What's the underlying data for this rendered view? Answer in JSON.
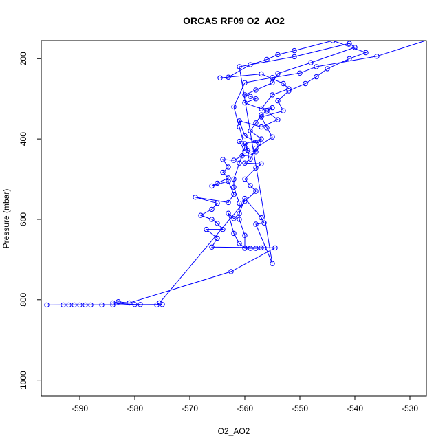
{
  "chart_data": {
    "type": "line",
    "title": "ORCAS RF09 O2_AO2",
    "xlabel": "O2_AO2",
    "ylabel": "Pressure (mbar)",
    "xlim": [
      -597,
      -527
    ],
    "ylim": [
      1040,
      155
    ],
    "y_reversed": true,
    "grid": false,
    "marker": "open-circle",
    "color": "#0000ff",
    "x_ticks": [
      -590,
      -580,
      -570,
      -560,
      -550,
      -540,
      -530
    ],
    "y_ticks": [
      200,
      400,
      600,
      800,
      1000
    ],
    "series": [
      {
        "points": [
          {
            "x": -526,
            "y": 150
          },
          {
            "x": -536,
            "y": 194
          },
          {
            "x": -547,
            "y": 220
          },
          {
            "x": -550,
            "y": 236
          },
          {
            "x": -555,
            "y": 247
          },
          {
            "x": -560,
            "y": 260
          },
          {
            "x": -562,
            "y": 320
          },
          {
            "x": -561,
            "y": 370
          },
          {
            "x": -560,
            "y": 420
          },
          {
            "x": -561,
            "y": 460
          },
          {
            "x": -562,
            "y": 500
          },
          {
            "x": -562,
            "y": 520
          },
          {
            "x": -561,
            "y": 560
          },
          {
            "x": -561,
            "y": 600
          },
          {
            "x": -560,
            "y": 640
          },
          {
            "x": -560,
            "y": 672
          },
          {
            "x": -559,
            "y": 672
          },
          {
            "x": -558,
            "y": 672
          },
          {
            "x": -557,
            "y": 671
          },
          {
            "x": -556.5,
            "y": 671
          },
          {
            "x": -558,
            "y": 672
          },
          {
            "x": -559,
            "y": 672
          },
          {
            "x": -560,
            "y": 671
          },
          {
            "x": -561,
            "y": 660
          },
          {
            "x": -562,
            "y": 635
          },
          {
            "x": -563,
            "y": 585
          },
          {
            "x": -562,
            "y": 598
          },
          {
            "x": -561,
            "y": 586
          },
          {
            "x": -560,
            "y": 548
          },
          {
            "x": -557,
            "y": 596
          },
          {
            "x": -556.5,
            "y": 609
          },
          {
            "x": -558,
            "y": 612
          },
          {
            "x": -555,
            "y": 710
          },
          {
            "x": -561,
            "y": 220
          },
          {
            "x": -551,
            "y": 195
          },
          {
            "x": -541,
            "y": 162
          },
          {
            "x": -540,
            "y": 172
          },
          {
            "x": -548,
            "y": 210
          },
          {
            "x": -554,
            "y": 237
          },
          {
            "x": -555,
            "y": 260
          },
          {
            "x": -558,
            "y": 278
          },
          {
            "x": -560,
            "y": 290
          },
          {
            "x": -559,
            "y": 294
          },
          {
            "x": -558,
            "y": 300
          },
          {
            "x": -560,
            "y": 310
          },
          {
            "x": -556,
            "y": 330
          },
          {
            "x": -557,
            "y": 340
          },
          {
            "x": -558,
            "y": 360
          },
          {
            "x": -559,
            "y": 380
          },
          {
            "x": -557,
            "y": 400
          },
          {
            "x": -560,
            "y": 412
          },
          {
            "x": -559.5,
            "y": 428
          },
          {
            "x": -558,
            "y": 432
          },
          {
            "x": -559,
            "y": 440
          },
          {
            "x": -560.5,
            "y": 442
          },
          {
            "x": -562,
            "y": 453
          },
          {
            "x": -564,
            "y": 451
          },
          {
            "x": -563,
            "y": 470
          },
          {
            "x": -564,
            "y": 483
          },
          {
            "x": -563,
            "y": 497
          },
          {
            "x": -565,
            "y": 510
          },
          {
            "x": -566,
            "y": 517
          },
          {
            "x": -563,
            "y": 505
          },
          {
            "x": -562,
            "y": 538
          },
          {
            "x": -563,
            "y": 558
          },
          {
            "x": -569,
            "y": 545
          },
          {
            "x": -565,
            "y": 560
          },
          {
            "x": -566,
            "y": 575
          },
          {
            "x": -568,
            "y": 590
          },
          {
            "x": -566,
            "y": 600
          },
          {
            "x": -565,
            "y": 610
          },
          {
            "x": -564,
            "y": 625
          },
          {
            "x": -567,
            "y": 625
          },
          {
            "x": -565,
            "y": 647
          },
          {
            "x": -566,
            "y": 669
          },
          {
            "x": -554.5,
            "y": 671
          },
          {
            "x": -562.5,
            "y": 730
          },
          {
            "x": -581,
            "y": 808
          },
          {
            "x": -583,
            "y": 805
          },
          {
            "x": -584,
            "y": 808
          },
          {
            "x": -580,
            "y": 812
          },
          {
            "x": -579,
            "y": 812
          },
          {
            "x": -584,
            "y": 813
          },
          {
            "x": -586,
            "y": 813
          },
          {
            "x": -588,
            "y": 813
          },
          {
            "x": -589,
            "y": 813
          },
          {
            "x": -590,
            "y": 813
          },
          {
            "x": -591,
            "y": 813
          },
          {
            "x": -592,
            "y": 813
          },
          {
            "x": -593,
            "y": 813
          },
          {
            "x": -596,
            "y": 813
          },
          {
            "x": -575,
            "y": 812
          },
          {
            "x": -576,
            "y": 813
          },
          {
            "x": -575.5,
            "y": 808
          },
          {
            "x": -560,
            "y": 555
          },
          {
            "x": -558,
            "y": 530
          },
          {
            "x": -559,
            "y": 516
          },
          {
            "x": -560,
            "y": 500
          },
          {
            "x": -558,
            "y": 472
          },
          {
            "x": -557,
            "y": 462
          },
          {
            "x": -560,
            "y": 460
          },
          {
            "x": -559,
            "y": 450
          },
          {
            "x": -558,
            "y": 423
          },
          {
            "x": -555,
            "y": 395
          },
          {
            "x": -556,
            "y": 372
          },
          {
            "x": -557,
            "y": 345
          },
          {
            "x": -553,
            "y": 330
          },
          {
            "x": -554,
            "y": 305
          },
          {
            "x": -552,
            "y": 280
          },
          {
            "x": -549,
            "y": 262
          },
          {
            "x": -547,
            "y": 245
          },
          {
            "x": -545,
            "y": 225
          },
          {
            "x": -541,
            "y": 200
          },
          {
            "x": -538,
            "y": 185
          },
          {
            "x": -544,
            "y": 155
          },
          {
            "x": -551,
            "y": 180
          },
          {
            "x": -554,
            "y": 190
          },
          {
            "x": -556,
            "y": 202
          },
          {
            "x": -559,
            "y": 215
          },
          {
            "x": -563,
            "y": 246
          },
          {
            "x": -564.5,
            "y": 248
          },
          {
            "x": -557,
            "y": 238
          },
          {
            "x": -553,
            "y": 262
          },
          {
            "x": -552,
            "y": 275
          },
          {
            "x": -555,
            "y": 290
          },
          {
            "x": -557,
            "y": 325
          },
          {
            "x": -555,
            "y": 322
          },
          {
            "x": -556,
            "y": 331
          },
          {
            "x": -554,
            "y": 352
          },
          {
            "x": -557,
            "y": 370
          },
          {
            "x": -561,
            "y": 355
          },
          {
            "x": -560,
            "y": 392
          },
          {
            "x": -557.5,
            "y": 410
          },
          {
            "x": -561,
            "y": 406
          },
          {
            "x": -560,
            "y": 430
          }
        ]
      }
    ]
  }
}
